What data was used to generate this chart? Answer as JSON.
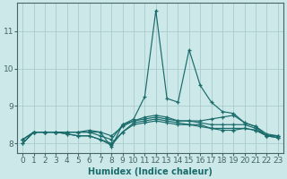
{
  "title": "",
  "xlabel": "Humidex (Indice chaleur)",
  "bg_color": "#cce8e8",
  "line_color": "#1a6b6b",
  "grid_color": "#aacccc",
  "axis_color": "#446666",
  "x_values": [
    0,
    1,
    2,
    3,
    4,
    5,
    6,
    7,
    8,
    9,
    10,
    11,
    12,
    13,
    14,
    15,
    16,
    17,
    18,
    19,
    20,
    21,
    22,
    23
  ],
  "series": [
    [
      8.1,
      8.3,
      8.3,
      8.3,
      8.3,
      8.3,
      8.3,
      8.3,
      7.9,
      8.5,
      8.65,
      9.25,
      11.55,
      9.2,
      9.1,
      10.5,
      9.55,
      9.1,
      8.85,
      8.8,
      8.55,
      8.45,
      8.2,
      8.2
    ],
    [
      8.1,
      8.3,
      8.3,
      8.3,
      8.3,
      8.3,
      8.3,
      8.2,
      8.1,
      8.5,
      8.6,
      8.7,
      8.75,
      8.7,
      8.6,
      8.6,
      8.6,
      8.65,
      8.7,
      8.75,
      8.55,
      8.45,
      8.25,
      8.2
    ],
    [
      8.1,
      8.3,
      8.3,
      8.3,
      8.3,
      8.3,
      8.35,
      8.3,
      8.2,
      8.45,
      8.6,
      8.65,
      8.7,
      8.65,
      8.6,
      8.6,
      8.55,
      8.5,
      8.5,
      8.5,
      8.5,
      8.4,
      8.2,
      8.2
    ],
    [
      8.0,
      8.3,
      8.3,
      8.3,
      8.25,
      8.2,
      8.2,
      8.1,
      8.0,
      8.3,
      8.55,
      8.6,
      8.65,
      8.6,
      8.55,
      8.5,
      8.5,
      8.4,
      8.4,
      8.4,
      8.4,
      8.35,
      8.2,
      8.15
    ],
    [
      8.0,
      8.3,
      8.3,
      8.3,
      8.25,
      8.2,
      8.2,
      8.1,
      7.95,
      8.3,
      8.5,
      8.55,
      8.6,
      8.55,
      8.5,
      8.5,
      8.45,
      8.4,
      8.35,
      8.35,
      8.4,
      8.35,
      8.2,
      8.15
    ]
  ],
  "ylim": [
    7.75,
    11.75
  ],
  "yticks": [
    8,
    9,
    10,
    11
  ],
  "xlim": [
    -0.5,
    23.5
  ],
  "xticks": [
    0,
    1,
    2,
    3,
    4,
    5,
    6,
    7,
    8,
    9,
    10,
    11,
    12,
    13,
    14,
    15,
    16,
    17,
    18,
    19,
    20,
    21,
    22,
    23
  ],
  "xlabel_fontsize": 7,
  "tick_fontsize": 6.5,
  "linewidth": 0.85,
  "markersize": 2.8,
  "markeredgewidth": 0.9
}
